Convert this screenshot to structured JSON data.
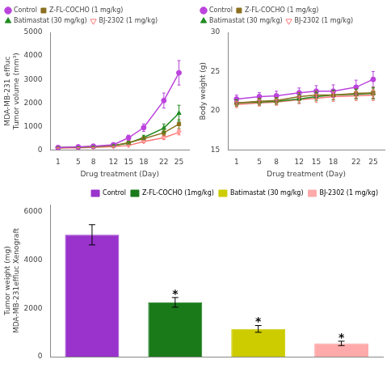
{
  "chart_data": [
    {
      "type": "line",
      "x": [
        1,
        5,
        8,
        12,
        15,
        18,
        22,
        25
      ],
      "xlim": [
        -0.5,
        27
      ],
      "xticks": [
        1,
        5,
        8,
        12,
        15,
        18,
        22,
        25
      ],
      "ylim": [
        0,
        5000
      ],
      "yticks": [
        0,
        1000,
        2000,
        3000,
        4000,
        5000
      ],
      "xlabel": "Drug treatment (Day)",
      "ylabel": "MDA-MB-231 effluc\nTumor volume (mm³)",
      "grid": false,
      "legend": "upper left",
      "series": [
        {
          "name": "Control",
          "color": "#bb44dd",
          "marker": "circle",
          "values": [
            100,
            130,
            160,
            220,
            520,
            950,
            2100,
            3280
          ],
          "errors": [
            15,
            20,
            25,
            40,
            110,
            160,
            320,
            520
          ]
        },
        {
          "name": "Z-FL-COCHO (1 mg/kg)",
          "color": "#8B7020",
          "marker": "square",
          "values": [
            100,
            115,
            140,
            190,
            310,
            480,
            730,
            1100
          ],
          "errors": [
            12,
            16,
            20,
            32,
            55,
            75,
            115,
            190
          ]
        },
        {
          "name": "Batimastat (30 mg/kg)",
          "color": "#228B22",
          "marker": "triangle",
          "values": [
            100,
            115,
            140,
            185,
            290,
            530,
            930,
            1560
          ],
          "errors": [
            12,
            16,
            20,
            32,
            55,
            95,
            175,
            340
          ]
        },
        {
          "name": "BJ-2302 (1 mg/kg)",
          "color": "#ff7777",
          "marker": "open_triangle_down",
          "values": [
            80,
            95,
            105,
            140,
            190,
            360,
            520,
            750
          ],
          "errors": [
            8,
            10,
            12,
            18,
            28,
            55,
            75,
            110
          ]
        }
      ]
    },
    {
      "type": "line",
      "x": [
        1,
        5,
        8,
        12,
        15,
        18,
        22,
        25
      ],
      "xlim": [
        -0.5,
        27
      ],
      "xticks": [
        1,
        5,
        8,
        12,
        15,
        18,
        22,
        25
      ],
      "ylim": [
        15,
        30
      ],
      "yticks": [
        15,
        20,
        25,
        30
      ],
      "xlabel": "Drug treatment (Day)",
      "ylabel": "Body weight (g)",
      "grid": false,
      "legend": "upper left",
      "series": [
        {
          "name": "Control",
          "color": "#bb44dd",
          "marker": "circle",
          "values": [
            21.5,
            21.8,
            21.9,
            22.3,
            22.5,
            22.5,
            23.0,
            24.0
          ],
          "errors": [
            0.5,
            0.5,
            0.6,
            0.6,
            0.7,
            0.8,
            0.9,
            1.0
          ]
        },
        {
          "name": "Z-FL-COCHO (1 mg/kg)",
          "color": "#8B7020",
          "marker": "square",
          "values": [
            21.0,
            21.2,
            21.3,
            21.8,
            22.0,
            22.0,
            22.2,
            22.3
          ],
          "errors": [
            0.4,
            0.4,
            0.4,
            0.5,
            0.5,
            0.6,
            0.6,
            0.7
          ]
        },
        {
          "name": "Batimastat (30 mg/kg)",
          "color": "#228B22",
          "marker": "triangle",
          "values": [
            21.0,
            21.1,
            21.2,
            21.5,
            21.8,
            22.0,
            22.1,
            22.2
          ],
          "errors": [
            0.4,
            0.4,
            0.4,
            0.5,
            0.5,
            0.6,
            0.6,
            0.7
          ]
        },
        {
          "name": "BJ-2302 (1 mg/kg)",
          "color": "#ff7777",
          "marker": "open_triangle_down",
          "values": [
            20.8,
            21.0,
            21.1,
            21.4,
            21.6,
            21.8,
            21.9,
            22.0
          ],
          "errors": [
            0.4,
            0.4,
            0.4,
            0.5,
            0.5,
            0.6,
            0.6,
            0.7
          ]
        }
      ]
    },
    {
      "type": "bar",
      "categories": [
        "Control",
        "Z-FL-COCHO (1mg/kg)",
        "Batimastat (30 mg/kg)",
        "BJ-2302 (1 mg/kg)"
      ],
      "values": [
        5050,
        2250,
        1150,
        550
      ],
      "errors": [
        420,
        200,
        140,
        90
      ],
      "colors": [
        "#9933cc",
        "#1a7a1a",
        "#cccc00",
        "#ffaaaa"
      ],
      "ylim": [
        0,
        6300
      ],
      "yticks": [
        0,
        2000,
        4000,
        6000
      ],
      "ylabel": "Tumor weight (mg)\nMDA-MB-231effluc Xenograft",
      "grid": false,
      "legend": "upper right",
      "tick_labels": "y",
      "annotations": [
        {
          "text": "*",
          "category": "Z-FL-COCHO (1mg/kg)"
        },
        {
          "text": "*",
          "category": "Batimastat (30 mg/kg)"
        },
        {
          "text": "*",
          "category": "BJ-2302 (1 mg/kg)"
        }
      ]
    }
  ]
}
